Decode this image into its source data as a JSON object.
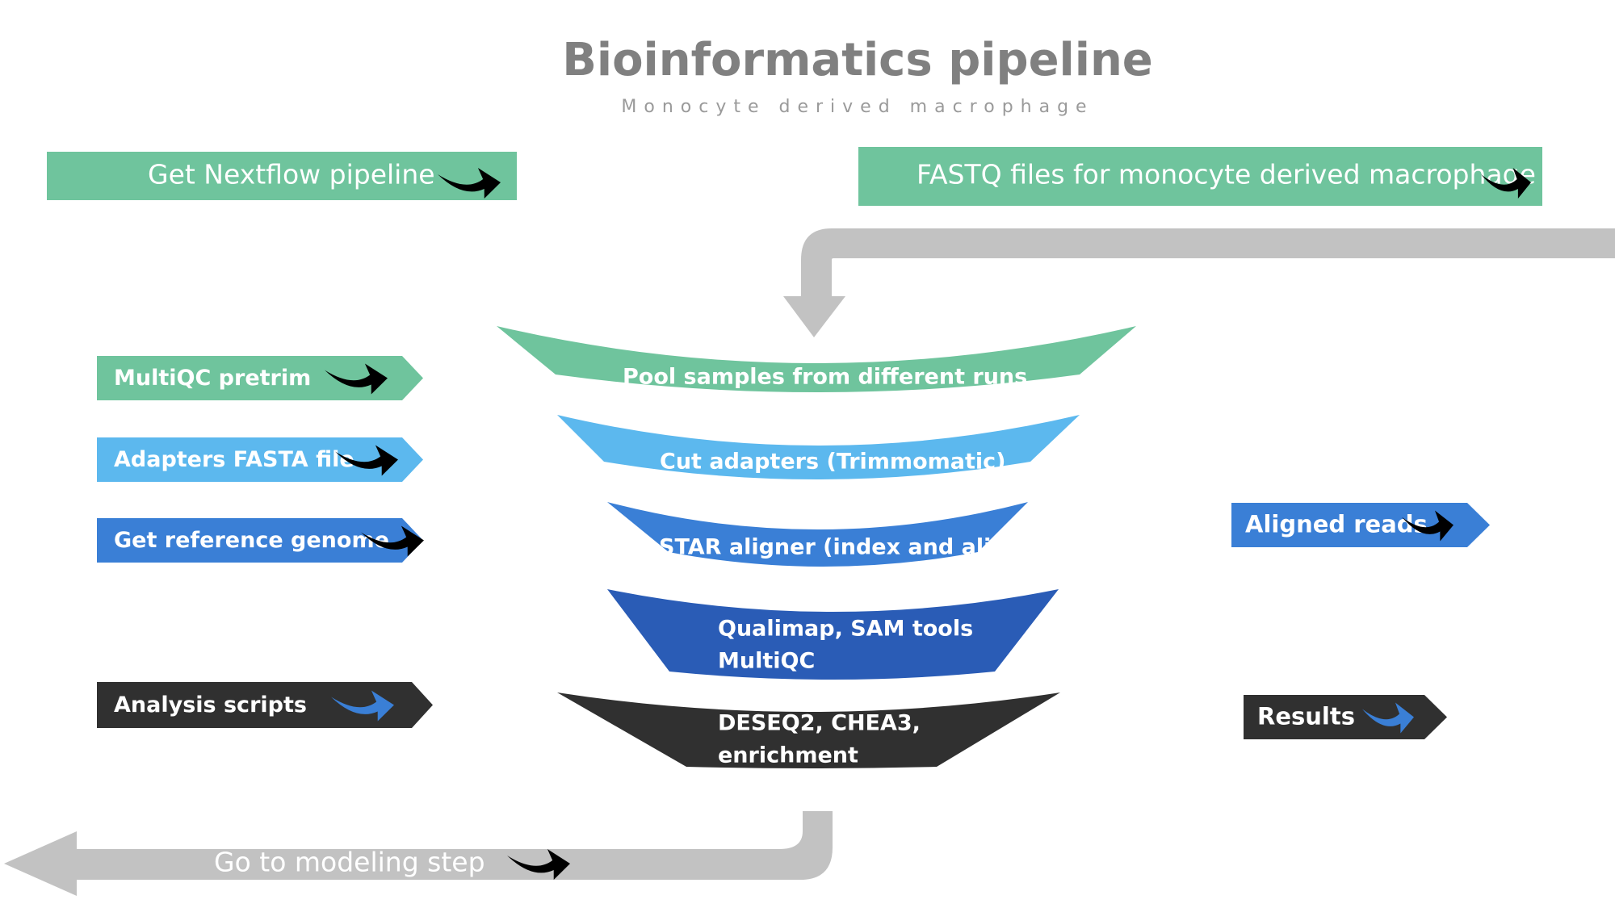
{
  "title": "Bioinformatics pipeline",
  "subtitle": "Monocyte derived macrophage",
  "colors": {
    "green": "#6fc49d",
    "light_blue": "#5cb8ee",
    "blue": "#3a7fd6",
    "dark_blue": "#2a5cb6",
    "black": "#303030",
    "gray_arrow": "#c2c2c2",
    "text_light": "#ffffff",
    "arrow_black": "#000000",
    "arrow_blue": "#3a7fd6"
  },
  "top_banners": {
    "nextflow": {
      "label": "Get Nextflow pipeline",
      "arrow_icon": "arrow-right-icon"
    },
    "fastq": {
      "label": "FASTQ files for monocyte derived macrophage",
      "arrow_icon": "arrow-right-icon"
    }
  },
  "inputs": [
    {
      "id": "multiqc-pretrim",
      "label": "MultiQC pretrim",
      "color": "green",
      "arrow_icon": "arrow-right-icon"
    },
    {
      "id": "adapters-fasta",
      "label": "Adapters FASTA file",
      "color": "light_blue",
      "arrow_icon": "arrow-right-icon"
    },
    {
      "id": "reference-genome",
      "label": "Get reference genome",
      "color": "blue",
      "arrow_icon": "arrow-right-icon"
    },
    {
      "id": "analysis-scripts",
      "label": "Analysis scripts",
      "color": "black",
      "arrow_icon": "arrow-right-icon"
    }
  ],
  "funnel_steps": [
    {
      "id": "pool-samples",
      "lines": [
        "Pool samples from  different runs"
      ],
      "color": "green"
    },
    {
      "id": "cut-adapters",
      "lines": [
        "Cut adapters (Trimmomatic)"
      ],
      "color": "light_blue"
    },
    {
      "id": "star-aligner",
      "lines": [
        "STAR aligner (index and align)"
      ],
      "color": "blue"
    },
    {
      "id": "qualimap",
      "lines": [
        "Qualimap, SAM tools",
        "MultiQC"
      ],
      "color": "dark_blue"
    },
    {
      "id": "deseq2",
      "lines": [
        "DESEQ2, CHEA3,",
        "enrichment"
      ],
      "color": "black"
    }
  ],
  "outputs": [
    {
      "id": "aligned-reads",
      "label": "Aligned reads",
      "color": "blue",
      "arrow_icon": "arrow-right-icon"
    },
    {
      "id": "results",
      "label": "Results",
      "color": "black",
      "arrow_icon": "arrow-right-icon"
    }
  ],
  "bottom_arrow": {
    "label": "Go to modeling step",
    "arrow_icon": "arrow-right-icon"
  }
}
